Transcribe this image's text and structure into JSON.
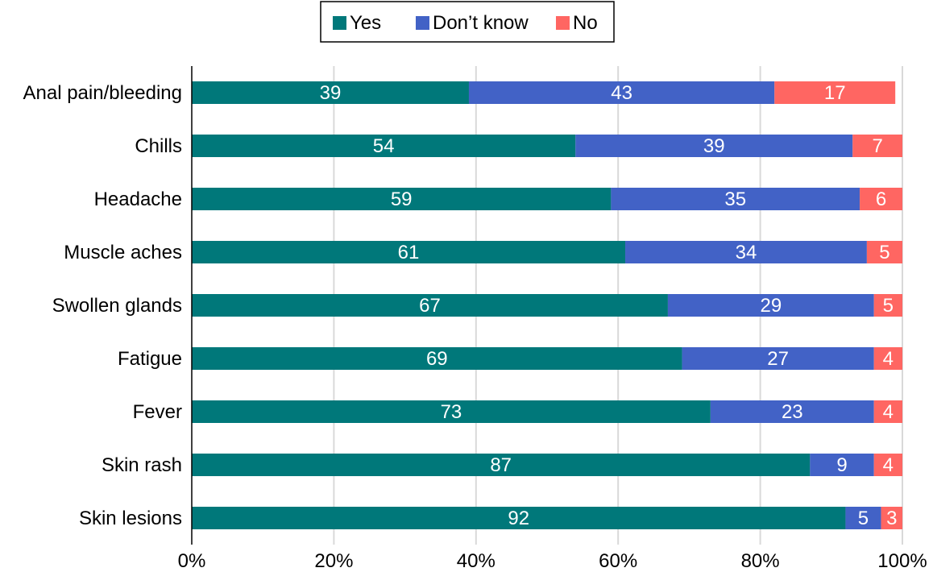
{
  "chart_data": {
    "type": "bar",
    "orientation": "horizontal",
    "stacked": true,
    "categories": [
      "Anal pain/bleeding",
      "Chills",
      "Headache",
      "Muscle aches",
      "Swollen glands",
      "Fatigue",
      "Fever",
      "Skin rash",
      "Skin lesions"
    ],
    "series": [
      {
        "name": "Yes",
        "color": "#00787a",
        "values": [
          39,
          54,
          59,
          61,
          67,
          69,
          73,
          87,
          92
        ]
      },
      {
        "name": "Don’t know",
        "color": "#4262c6",
        "values": [
          43,
          39,
          35,
          34,
          29,
          27,
          23,
          9,
          5
        ]
      },
      {
        "name": "No",
        "color": "#ff6662",
        "values": [
          17,
          7,
          6,
          5,
          5,
          4,
          4,
          4,
          3
        ]
      }
    ],
    "xlim": [
      0,
      100
    ],
    "x_ticks": [
      0,
      20,
      40,
      60,
      80,
      100
    ],
    "x_tick_labels": [
      "0%",
      "20%",
      "40%",
      "60%",
      "80%",
      "100%"
    ],
    "grid": "vertical",
    "legend_position": "top-center",
    "title": "",
    "xlabel": "",
    "ylabel": ""
  }
}
